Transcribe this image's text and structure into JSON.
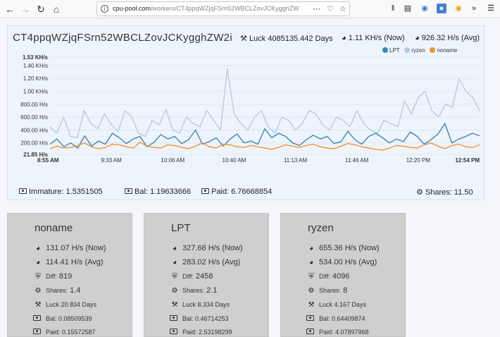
{
  "browser": {
    "url_domain": "cpu-pool.com",
    "url_path": "/workers/CT4ppqWZjqFSrn52WBCLZovJCKygghZW",
    "colors": {
      "toolbar": "#f9f9fa"
    }
  },
  "worker": {
    "title": "CT4ppqWZjqFSrn52WBCLZovJCKygghZW2i",
    "luck": "Luck 4085135.442 Days",
    "rate_now": "1.11 KH/s (Now)",
    "rate_avg": "926.32 H/s (Avg)",
    "immature": "Immature: 1.5351505",
    "bal": "Bal: 1.19633666",
    "paid": "Paid: 6.76668854",
    "shares": "Shares: 11.50"
  },
  "chart_data": {
    "type": "line",
    "x_ticks": [
      "8:55 AM",
      "9:33 AM",
      "10:06 AM",
      "10:40 AM",
      "11:13 AM",
      "11:46 AM",
      "12:20 PM",
      "12:54 PM"
    ],
    "y_ticks": [
      "21.85 H/s",
      "200.00 H/s",
      "400.00 H/s",
      "600.00 H/s",
      "800.00 H/s",
      "1.00 KH/s",
      "1.20 KH/s",
      "1.40 KH/s",
      "1.53 KH/s"
    ],
    "ylim": [
      21.85,
      1530
    ],
    "grid": true,
    "legend": "top-right",
    "series": [
      {
        "name": "LPT",
        "color": "#3a87b8",
        "values": [
          180,
          260,
          140,
          200,
          120,
          310,
          150,
          230,
          180,
          350,
          280,
          190,
          260,
          300,
          140,
          210,
          330,
          260,
          300,
          190,
          250,
          400,
          180,
          220,
          280,
          150,
          260,
          340,
          200,
          230,
          180,
          420,
          280,
          350,
          300,
          200,
          160,
          250,
          320,
          260,
          300,
          190,
          220,
          380,
          250,
          180,
          300,
          350,
          280,
          200,
          260,
          220,
          370,
          300,
          180,
          250,
          340,
          500,
          200,
          260,
          300,
          350,
          310
        ]
      },
      {
        "name": "ryzen",
        "color": "#b6cbe2",
        "values": [
          450,
          350,
          600,
          300,
          280,
          700,
          500,
          420,
          650,
          480,
          380,
          700,
          600,
          350,
          300,
          550,
          480,
          720,
          400,
          350,
          600,
          500,
          450,
          700,
          550,
          400,
          1350,
          650,
          500,
          400,
          600,
          700,
          450,
          350,
          600,
          550,
          400,
          500,
          700,
          650,
          480,
          400,
          600,
          550,
          450,
          700,
          500,
          400,
          350,
          550,
          500,
          450,
          850,
          650,
          900,
          1000,
          700,
          600,
          800,
          750,
          1200,
          1000,
          900,
          700
        ]
      },
      {
        "name": "noname",
        "color": "#f39331",
        "values": [
          110,
          150,
          120,
          130,
          160,
          200,
          140,
          110,
          130,
          180,
          170,
          140,
          120,
          210,
          150,
          130,
          120,
          170,
          160,
          130,
          110,
          150,
          200,
          140,
          120,
          180,
          170,
          140,
          130,
          160,
          140,
          120,
          100,
          130,
          170,
          150,
          130,
          160,
          180,
          140,
          120,
          110,
          150,
          190,
          170,
          140,
          120,
          100,
          90,
          120,
          160,
          150,
          130,
          120,
          170,
          200,
          150,
          110,
          160,
          180,
          140,
          130,
          170
        ]
      }
    ]
  },
  "cards": [
    {
      "name": "noname",
      "now": "131.07 H/s (Now)",
      "avg": "114.41 H/s (Avg)",
      "diff_label": "Diff:",
      "diff": "819",
      "shares_label": "Shares:",
      "shares": "1.4",
      "luck": "Luck 20.834 Days",
      "bal": "Bal: 0.08509539",
      "paid": "Paid: 0.15572587"
    },
    {
      "name": "LPT",
      "now": "327.68 H/s (Now)",
      "avg": "283.02 H/s (Avg)",
      "diff_label": "Diff:",
      "diff": "2458",
      "shares_label": "Shares:",
      "shares": "2.1",
      "luck": "Luck 8.334 Days",
      "bal": "Bal: 0.46714253",
      "paid": "Paid: 2.53198299"
    },
    {
      "name": "ryzen",
      "now": "655.36 H/s (Now)",
      "avg": "534.00 H/s (Avg)",
      "diff_label": "Diff:",
      "diff": "4096",
      "shares_label": "Shares:",
      "shares": "8",
      "luck": "Luck 4.167 Days",
      "bal": "Bal: 0.64409874",
      "paid": "Paid: 4.07897968"
    }
  ]
}
